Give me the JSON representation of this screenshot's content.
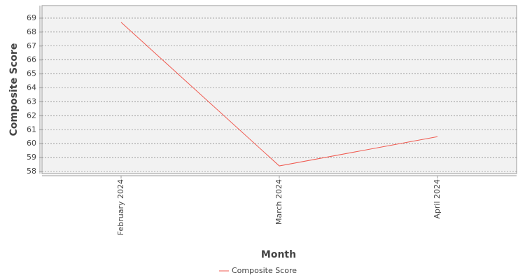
{
  "chart_data": {
    "type": "line",
    "x_label": "Month",
    "y_label": "Composite Score",
    "categories": [
      "February 2024",
      "March 2024",
      "April 2024"
    ],
    "series": [
      {
        "name": "Composite Score",
        "color": "#f05a50",
        "values": [
          68.7,
          58.4,
          60.5
        ]
      }
    ],
    "ylim": [
      57.85,
      69.9
    ],
    "yticks": [
      58,
      59,
      60,
      61,
      62,
      63,
      64,
      65,
      66,
      67,
      68,
      69
    ],
    "grid": true,
    "legend": "bottom"
  }
}
